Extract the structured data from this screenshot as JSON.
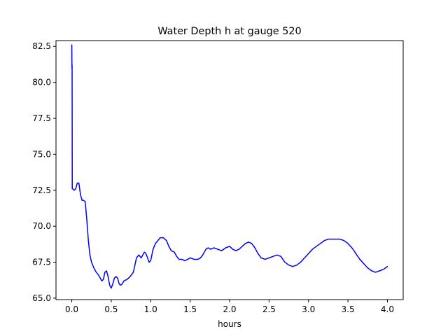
{
  "chart_data": {
    "type": "line",
    "title": "Water Depth h at gauge 520",
    "xlabel": "hours",
    "ylabel": "",
    "xlim": [
      -0.2,
      4.2
    ],
    "ylim": [
      64.9,
      82.9
    ],
    "xticks": [
      0.0,
      0.5,
      1.0,
      1.5,
      2.0,
      2.5,
      3.0,
      3.5,
      4.0
    ],
    "xtick_labels": [
      "0.0",
      "0.5",
      "1.0",
      "1.5",
      "2.0",
      "2.5",
      "3.0",
      "3.5",
      "4.0"
    ],
    "yticks": [
      65.0,
      67.5,
      70.0,
      72.5,
      75.0,
      77.5,
      80.0,
      82.5
    ],
    "ytick_labels": [
      "65.0",
      "67.5",
      "70.0",
      "72.5",
      "75.0",
      "77.5",
      "80.0",
      "82.5"
    ],
    "grid": false,
    "series": [
      {
        "name": "",
        "color": "#0000ff",
        "x": [
          0.0,
          0.002,
          0.004,
          0.006,
          0.01,
          0.03,
          0.05,
          0.07,
          0.09,
          0.11,
          0.13,
          0.15,
          0.17,
          0.19,
          0.21,
          0.23,
          0.25,
          0.28,
          0.31,
          0.34,
          0.36,
          0.38,
          0.4,
          0.42,
          0.44,
          0.46,
          0.48,
          0.5,
          0.52,
          0.54,
          0.56,
          0.58,
          0.6,
          0.62,
          0.64,
          0.66,
          0.7,
          0.74,
          0.78,
          0.8,
          0.82,
          0.85,
          0.88,
          0.9,
          0.92,
          0.94,
          0.96,
          0.98,
          1.0,
          1.03,
          1.06,
          1.09,
          1.12,
          1.16,
          1.2,
          1.23,
          1.26,
          1.3,
          1.33,
          1.36,
          1.4,
          1.43,
          1.47,
          1.5,
          1.55,
          1.6,
          1.63,
          1.66,
          1.7,
          1.73,
          1.76,
          1.8,
          1.85,
          1.9,
          1.95,
          2.0,
          2.04,
          2.08,
          2.12,
          2.16,
          2.2,
          2.24,
          2.28,
          2.32,
          2.36,
          2.4,
          2.45,
          2.5,
          2.55,
          2.6,
          2.65,
          2.7,
          2.75,
          2.8,
          2.85,
          2.9,
          2.95,
          3.0,
          3.05,
          3.1,
          3.15,
          3.2,
          3.25,
          3.3,
          3.35,
          3.4,
          3.45,
          3.5,
          3.55,
          3.6,
          3.65,
          3.7,
          3.75,
          3.8,
          3.85,
          3.9,
          3.95,
          4.0
        ],
        "values": [
          82.6,
          81.0,
          81.2,
          72.6,
          72.6,
          72.5,
          72.6,
          73.0,
          73.0,
          72.2,
          71.8,
          71.8,
          71.7,
          70.5,
          69.0,
          68.0,
          67.5,
          67.1,
          66.8,
          66.6,
          66.4,
          66.2,
          66.3,
          66.8,
          66.9,
          66.5,
          65.9,
          65.7,
          66.0,
          66.4,
          66.5,
          66.4,
          66.0,
          65.9,
          66.0,
          66.2,
          66.3,
          66.5,
          66.8,
          67.3,
          67.8,
          68.0,
          67.8,
          68.0,
          68.2,
          68.1,
          67.8,
          67.5,
          67.6,
          68.4,
          68.8,
          69.0,
          69.2,
          69.2,
          69.0,
          68.6,
          68.3,
          68.2,
          67.9,
          67.7,
          67.7,
          67.6,
          67.7,
          67.8,
          67.7,
          67.7,
          67.8,
          68.0,
          68.4,
          68.5,
          68.4,
          68.5,
          68.4,
          68.3,
          68.5,
          68.6,
          68.4,
          68.3,
          68.4,
          68.6,
          68.8,
          68.9,
          68.8,
          68.5,
          68.1,
          67.8,
          67.7,
          67.8,
          67.9,
          68.0,
          67.9,
          67.5,
          67.3,
          67.2,
          67.3,
          67.5,
          67.8,
          68.1,
          68.4,
          68.6,
          68.8,
          69.0,
          69.1,
          69.1,
          69.1,
          69.1,
          69.0,
          68.8,
          68.5,
          68.1,
          67.7,
          67.4,
          67.1,
          66.9,
          66.8,
          66.9,
          67.0,
          67.2
        ]
      }
    ]
  }
}
